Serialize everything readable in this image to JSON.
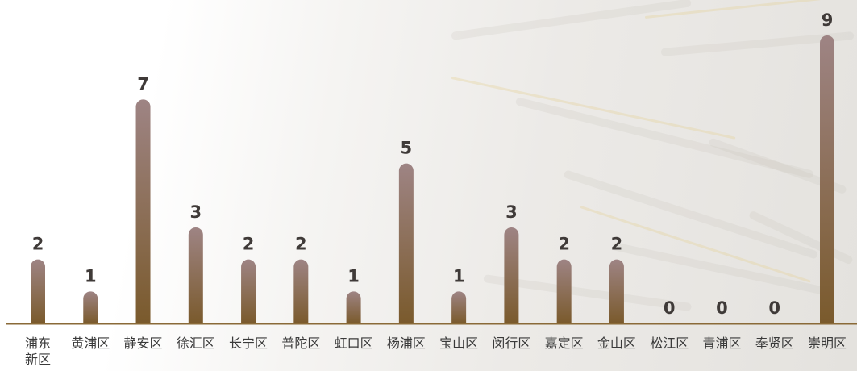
{
  "chart_data": {
    "type": "bar",
    "categories": [
      "浦东新区",
      "黄浦区",
      "静安区",
      "徐汇区",
      "长宁区",
      "普陀区",
      "虹口区",
      "杨浦区",
      "宝山区",
      "闵行区",
      "嘉定区",
      "金山区",
      "松江区",
      "青浦区",
      "奉贤区",
      "崇明区"
    ],
    "category_lines": [
      [
        "浦东",
        "新区"
      ],
      [
        "黄浦区"
      ],
      [
        "静安区"
      ],
      [
        "徐汇区"
      ],
      [
        "长宁区"
      ],
      [
        "普陀区"
      ],
      [
        "虹口区"
      ],
      [
        "杨浦区"
      ],
      [
        "宝山区"
      ],
      [
        "闵行区"
      ],
      [
        "嘉定区"
      ],
      [
        "金山区"
      ],
      [
        "松江区"
      ],
      [
        "青浦区"
      ],
      [
        "奉贤区"
      ],
      [
        "崇明区"
      ]
    ],
    "values": [
      2,
      1,
      7,
      3,
      2,
      2,
      1,
      5,
      1,
      3,
      2,
      2,
      0,
      0,
      0,
      9
    ],
    "ylim": [
      0,
      9
    ],
    "grid": false,
    "legend": "none",
    "colors": {
      "bar_top": "#9e8484",
      "bar_bottom": "#7a5a2c",
      "axis": "#8a6a38",
      "value_text": "#3f3a38",
      "label_text": "#3a3a3a"
    }
  }
}
